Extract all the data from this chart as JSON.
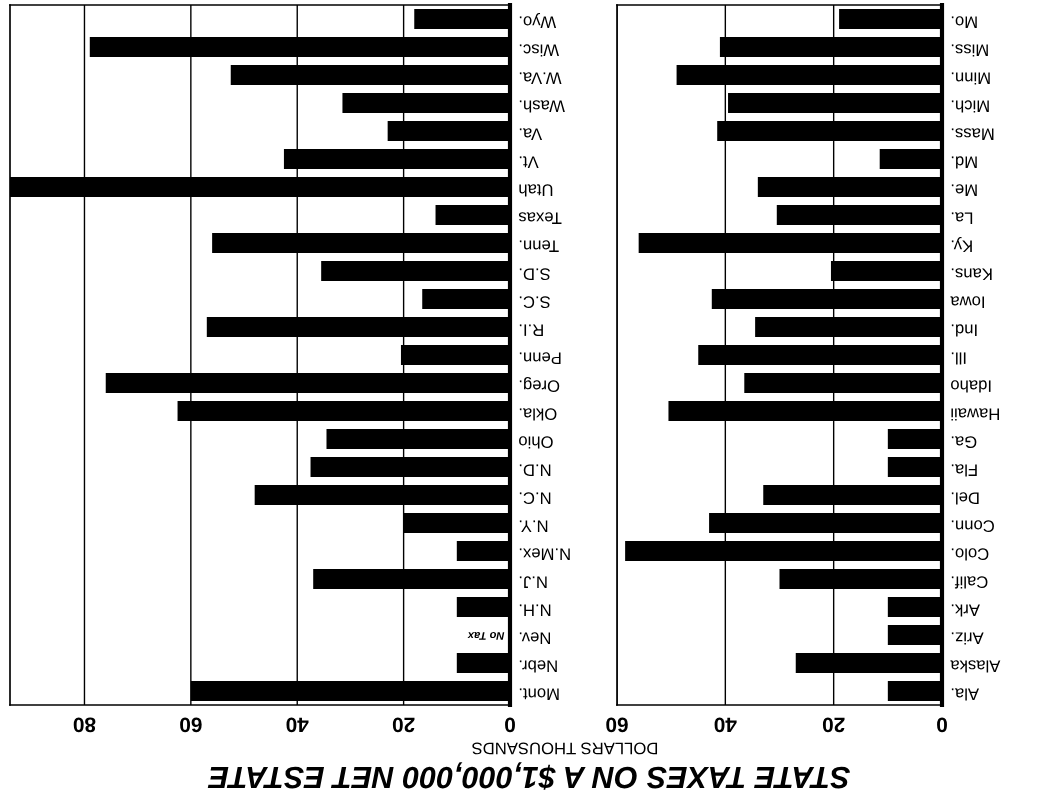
{
  "chart_data": [
    {
      "type": "bar",
      "orientation": "horizontal",
      "title": "STATE TAXES ON A $1,000,000 NET ESTATE",
      "xlabel": "DOLLARS THOUSANDS",
      "categories": [
        "Wyo.",
        "Wisc.",
        "W.Va.",
        "Wash.",
        "Va.",
        "Vt.",
        "Utah",
        "Texas",
        "Tenn.",
        "S.D.",
        "S.C.",
        "R.I.",
        "Penn.",
        "Oreg.",
        "Okla.",
        "Ohio",
        "N.D.",
        "N.C.",
        "N.Y.",
        "N.Mex.",
        "N.J.",
        "N.H.",
        "Nev.",
        "Nebr.",
        "Mont."
      ],
      "values": [
        18,
        79,
        52.5,
        31.5,
        23,
        42.5,
        94,
        14,
        56,
        35.5,
        16.5,
        57,
        20.5,
        76,
        62.5,
        34.5,
        37.5,
        48,
        20,
        10,
        37,
        10,
        0,
        10,
        60
      ],
      "color": "#000000",
      "xlim": [
        94,
        0
      ],
      "xticks": [
        80,
        60,
        40,
        20,
        0
      ],
      "grid": "x",
      "annotations": [
        {
          "text": "No Tax",
          "x": 0,
          "y": "Nev."
        }
      ]
    },
    {
      "type": "bar",
      "orientation": "horizontal",
      "categories": [
        "Mo.",
        "Miss.",
        "Minn.",
        "Mich.",
        "Mass.",
        "Md.",
        "Me.",
        "La.",
        "Ky.",
        "Kans.",
        "Iowa",
        "Ind.",
        "Ill.",
        "Idaho",
        "Hawaii",
        "Ga.",
        "Fla.",
        "Del.",
        "Conn.",
        "Colo.",
        "Calif.",
        "Ark.",
        "Ariz.",
        "Alaska",
        "Ala."
      ],
      "values": [
        19,
        41,
        49,
        39.5,
        41.5,
        11.5,
        34,
        30.5,
        56,
        20.5,
        42.5,
        34.5,
        45,
        36.5,
        50.5,
        10,
        10,
        33,
        43,
        58.5,
        30,
        10,
        10,
        27,
        10
      ],
      "color": "#000000",
      "xlim": [
        60,
        0
      ],
      "xticks": [
        60,
        40,
        20,
        0
      ],
      "grid": "x"
    }
  ]
}
